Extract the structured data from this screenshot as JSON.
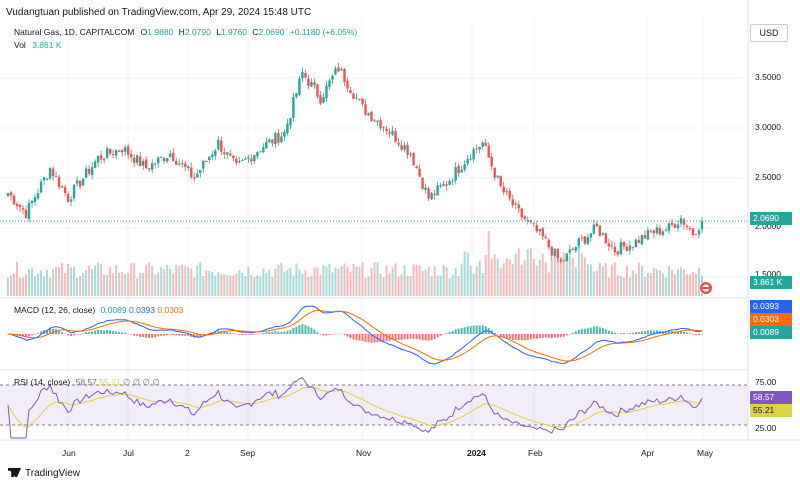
{
  "header": {
    "publisher": "Vudangtuan published on TradingView.com, Apr 29, 2024 15:48 UTC",
    "currency": "USD"
  },
  "legend": {
    "symbol": "Natural Gas, 1D, CAPITALCOM",
    "o_label": "O",
    "o_val": "1.9880",
    "h_label": "H",
    "h_val": "2.0790",
    "l_label": "L",
    "l_val": "1.9760",
    "c_label": "C",
    "c_val": "2.0690",
    "change": "+0.1180 (+6.05%)",
    "vol_label": "Vol",
    "vol_val": "3.861 K"
  },
  "macd": {
    "label": "MACD (12, 26, close)",
    "v1": "0.0089",
    "v2": "0.0393",
    "v3": "0.0303"
  },
  "rsi": {
    "label": "RSI (14, close)",
    "v1": "58.57",
    "v2": "55.21",
    "extra": "∅ ∅ ∅ ∅"
  },
  "price_axis": {
    "ticks": [
      "3.5000",
      "3.0000",
      "2.5000",
      "2.0000",
      "1.5000"
    ],
    "last_price": "2.0690",
    "vol_badge": "3.861 K"
  },
  "macd_axis": {
    "b1": "0.0393",
    "b2": "0.0303",
    "b3": "0.0089"
  },
  "rsi_axis": {
    "top": "75.00",
    "b1": "58.57",
    "b2": "55.21",
    "bottom": "25.00"
  },
  "x_axis": [
    "Jun",
    "Jul",
    "2",
    "Sep",
    "Nov",
    "2024",
    "Feb",
    "Apr",
    "May"
  ],
  "brand": "TradingView",
  "colors": {
    "up": "#26a69a",
    "down": "#ef5350",
    "rsi": "#7e57c2",
    "rsi_ma": "#ddd146",
    "macd": "#2962ff",
    "signal": "#ff6d00"
  },
  "chart_data": {
    "type": "candlestick",
    "title": "Natural Gas, 1D, CAPITALCOM",
    "ylabel": "USD",
    "ylim": [
      1.5,
      3.7
    ],
    "anchors": [
      {
        "i": 0,
        "p": 2.35
      },
      {
        "i": 6,
        "p": 2.15
      },
      {
        "i": 14,
        "p": 2.6
      },
      {
        "i": 20,
        "p": 2.3
      },
      {
        "i": 30,
        "p": 2.7
      },
      {
        "i": 38,
        "p": 2.8
      },
      {
        "i": 46,
        "p": 2.6
      },
      {
        "i": 54,
        "p": 2.75
      },
      {
        "i": 62,
        "p": 2.5
      },
      {
        "i": 70,
        "p": 2.85
      },
      {
        "i": 76,
        "p": 2.6
      },
      {
        "i": 84,
        "p": 2.8
      },
      {
        "i": 92,
        "p": 2.95
      },
      {
        "i": 98,
        "p": 3.55
      },
      {
        "i": 104,
        "p": 3.3
      },
      {
        "i": 110,
        "p": 3.6
      },
      {
        "i": 118,
        "p": 3.2
      },
      {
        "i": 126,
        "p": 3.0
      },
      {
        "i": 134,
        "p": 2.75
      },
      {
        "i": 140,
        "p": 2.3
      },
      {
        "i": 146,
        "p": 2.45
      },
      {
        "i": 154,
        "p": 2.75
      },
      {
        "i": 158,
        "p": 2.85
      },
      {
        "i": 164,
        "p": 2.4
      },
      {
        "i": 170,
        "p": 2.15
      },
      {
        "i": 178,
        "p": 1.9
      },
      {
        "i": 184,
        "p": 1.65
      },
      {
        "i": 190,
        "p": 1.85
      },
      {
        "i": 196,
        "p": 2.0
      },
      {
        "i": 202,
        "p": 1.78
      },
      {
        "i": 208,
        "p": 1.85
      },
      {
        "i": 214,
        "p": 1.95
      },
      {
        "i": 220,
        "p": 2.0
      },
      {
        "i": 224,
        "p": 2.1
      },
      {
        "i": 228,
        "p": 1.95
      },
      {
        "i": 231,
        "p": 2.069
      }
    ],
    "count": 232,
    "last_close": 2.069,
    "rsi_levels": [
      75,
      25
    ],
    "macd_values": {
      "macd": 0.0393,
      "signal": 0.0303,
      "histogram": 0.0089
    },
    "rsi_values": {
      "rsi": 58.57,
      "ma": 55.21
    }
  }
}
